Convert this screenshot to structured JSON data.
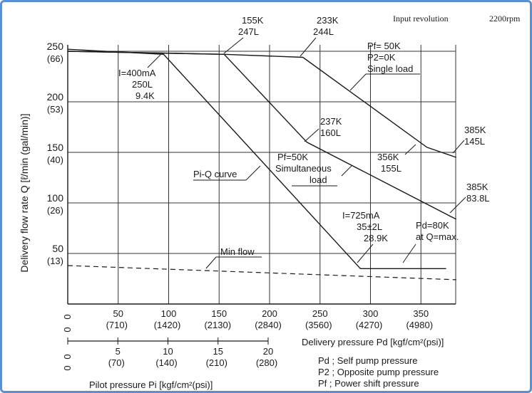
{
  "header": {
    "input_revolution_label": "Input revolution",
    "input_revolution_value": "2200rpm"
  },
  "chart_data": {
    "type": "line",
    "xlabel": "Delivery pressure Pd [kgf/cm²(psi)]",
    "ylabel": "Delivery flow rate Q [ℓ/min (gal/min)]",
    "xlim": [
      0,
      395
    ],
    "ylim": [
      0,
      260
    ],
    "x_ticks": [
      {
        "value": 0,
        "main": "0",
        "sub": "0"
      },
      {
        "value": 50,
        "main": "50",
        "sub": "(710)"
      },
      {
        "value": 100,
        "main": "100",
        "sub": "(1420)"
      },
      {
        "value": 150,
        "main": "150",
        "sub": "(2130)"
      },
      {
        "value": 200,
        "main": "200",
        "sub": "(2840)"
      },
      {
        "value": 250,
        "main": "250",
        "sub": "(3560)"
      },
      {
        "value": 300,
        "main": "300",
        "sub": "(4270)"
      },
      {
        "value": 350,
        "main": "350",
        "sub": "(4980)"
      }
    ],
    "y_ticks": [
      {
        "value": 50,
        "main": "50",
        "sub": "(13)"
      },
      {
        "value": 100,
        "main": "100",
        "sub": "(26)"
      },
      {
        "value": 150,
        "main": "150",
        "sub": "(40)"
      },
      {
        "value": 200,
        "main": "200",
        "sub": "(53)"
      },
      {
        "value": 250,
        "main": "250",
        "sub": "(66)"
      }
    ],
    "pilot_axis": {
      "label": "Pilot pressure Pi [kgf/cm²(psi)]",
      "ticks": [
        {
          "value": 0,
          "main": "0",
          "sub": "0"
        },
        {
          "value": 5,
          "main": "5",
          "sub": "(70)"
        },
        {
          "value": 10,
          "main": "10",
          "sub": "(140)"
        },
        {
          "value": 15,
          "main": "15",
          "sub": "(210)"
        },
        {
          "value": 20,
          "main": "20",
          "sub": "(280)"
        }
      ]
    },
    "series": [
      {
        "style": "solid",
        "points": [
          [
            0,
            250
          ],
          [
            155,
            247
          ],
          [
            233,
            244
          ],
          [
            356,
            155
          ],
          [
            385,
            145
          ]
        ]
      },
      {
        "style": "solid",
        "points": [
          [
            0,
            250
          ],
          [
            155,
            247
          ],
          [
            237,
            160
          ],
          [
            385,
            83.8
          ]
        ]
      },
      {
        "style": "solid",
        "points": [
          [
            0,
            252
          ],
          [
            95,
            247
          ],
          [
            290,
            35
          ],
          [
            375,
            35
          ]
        ]
      },
      {
        "style": "dashed",
        "points": [
          [
            0,
            38
          ],
          [
            385,
            24
          ]
        ]
      }
    ],
    "annotations": {
      "top_155": [
        "155K",
        "247L"
      ],
      "top_233": [
        "233K",
        "244L"
      ],
      "single_load": [
        "Pf= 50K",
        "P2=0K",
        "Single load"
      ],
      "i400": [
        "I=400mA",
        "250L",
        "9.4K"
      ],
      "pt_237": [
        "237K",
        "160L"
      ],
      "pt_385a": [
        "385K",
        "145L"
      ],
      "pt_356": [
        "356K",
        "155L"
      ],
      "pi_q_curve": "Pi-Q curve",
      "simultaneous": [
        "Pf=50K",
        "Simultaneous",
        "load"
      ],
      "pt_385b": [
        "385K",
        "83.8L"
      ],
      "i725": [
        "I=725mA",
        "35±2L",
        "28.9K"
      ],
      "pd80": [
        "Pd=80K",
        "at Q=max."
      ],
      "min_flow": "Min flow"
    },
    "legend": [
      "Pd ; Self pump pressure",
      "P2 ; Opposite pump pressure",
      "Pf ; Power shift pressure"
    ]
  }
}
